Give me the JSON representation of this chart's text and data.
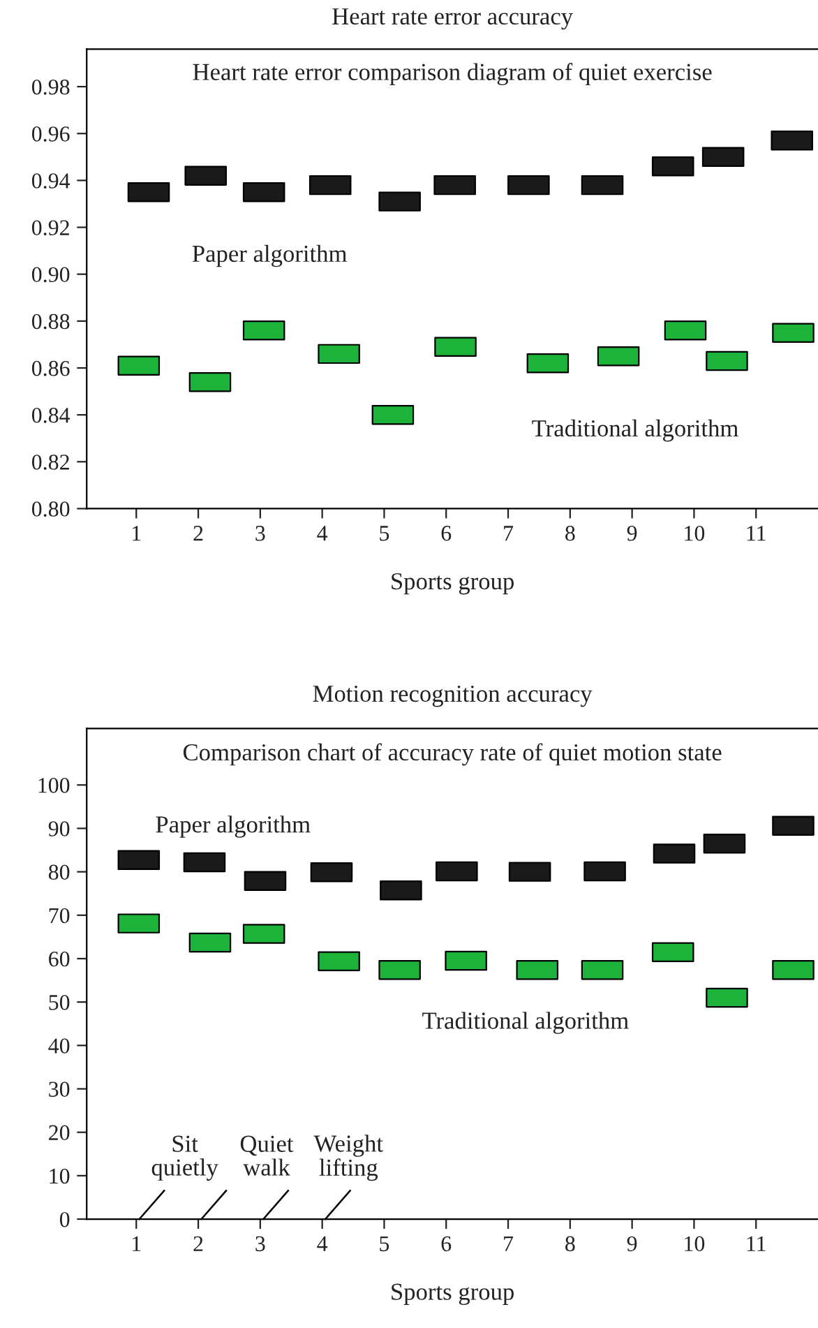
{
  "chart_data": [
    {
      "type": "scatter",
      "title": "Heart rate error accuracy",
      "subtitle": "Heart rate error comparison diagram of quiet exercise",
      "xlabel": "Sports group",
      "xlim": [
        0.2,
        12
      ],
      "xticks": [
        1,
        2,
        3,
        4,
        5,
        6,
        7,
        8,
        9,
        10,
        11
      ],
      "ylim": [
        0.8,
        0.996
      ],
      "yticks": [
        {
          "value": 0.8,
          "label": "0.80"
        },
        0.82,
        0.84,
        0.86,
        0.88,
        {
          "value": 0.9,
          "label": "0.90"
        },
        0.92,
        0.94,
        0.96,
        0.98
      ],
      "marker": "square",
      "grid": false,
      "legend": false,
      "series": [
        {
          "name": "Paper algorithm",
          "color": "#1a1a1a",
          "x": [
            1.2,
            2.12,
            3.06,
            4.13,
            5.25,
            6.14,
            7.33,
            8.52,
            9.66,
            10.47,
            11.58
          ],
          "values": [
            0.935,
            0.942,
            0.935,
            0.938,
            0.931,
            0.938,
            0.938,
            0.938,
            0.946,
            0.95,
            0.957
          ]
        },
        {
          "name": "Traditional algorithm",
          "color": "#1db33a",
          "x": [
            1.04,
            2.19,
            3.06,
            4.27,
            5.14,
            6.15,
            7.64,
            8.78,
            9.86,
            10.53,
            11.6
          ],
          "values": [
            0.861,
            0.854,
            0.876,
            0.866,
            0.84,
            0.869,
            0.862,
            0.865,
            0.876,
            0.863,
            0.875
          ]
        }
      ]
    },
    {
      "type": "scatter",
      "title": "Motion recognition accuracy",
      "subtitle": "Comparison chart of accuracy rate of quiet motion state",
      "xlabel": "Sports group",
      "xlim": [
        0.2,
        12
      ],
      "xticks": [
        1,
        2,
        3,
        4,
        5,
        6,
        7,
        8,
        9,
        10,
        11
      ],
      "ylim": [
        0,
        113
      ],
      "yticks": [
        0,
        10,
        20,
        30,
        40,
        50,
        60,
        70,
        80,
        90,
        100
      ],
      "marker": "square",
      "grid": false,
      "legend": false,
      "annotations": [
        "Sit quietly",
        "Quiet walk",
        "Weight lifting"
      ],
      "series": [
        {
          "name": "Paper algorithm",
          "color": "#1a1a1a",
          "x": [
            1.04,
            2.1,
            3.08,
            4.15,
            5.27,
            6.17,
            7.35,
            8.56,
            9.68,
            10.49,
            11.6
          ],
          "values": [
            82.7,
            82.2,
            77.9,
            79.9,
            75.7,
            80.1,
            80,
            80.1,
            84.2,
            86.5,
            90.6
          ]
        },
        {
          "name": "Traditional algorithm",
          "color": "#1db33a",
          "x": [
            1.04,
            2.19,
            3.06,
            4.27,
            5.25,
            6.32,
            7.47,
            8.52,
            9.66,
            10.53,
            11.6
          ],
          "values": [
            68.1,
            63.7,
            65.7,
            59.4,
            57.4,
            59.5,
            57.4,
            57.4,
            61.5,
            51,
            57.4
          ]
        }
      ]
    }
  ]
}
